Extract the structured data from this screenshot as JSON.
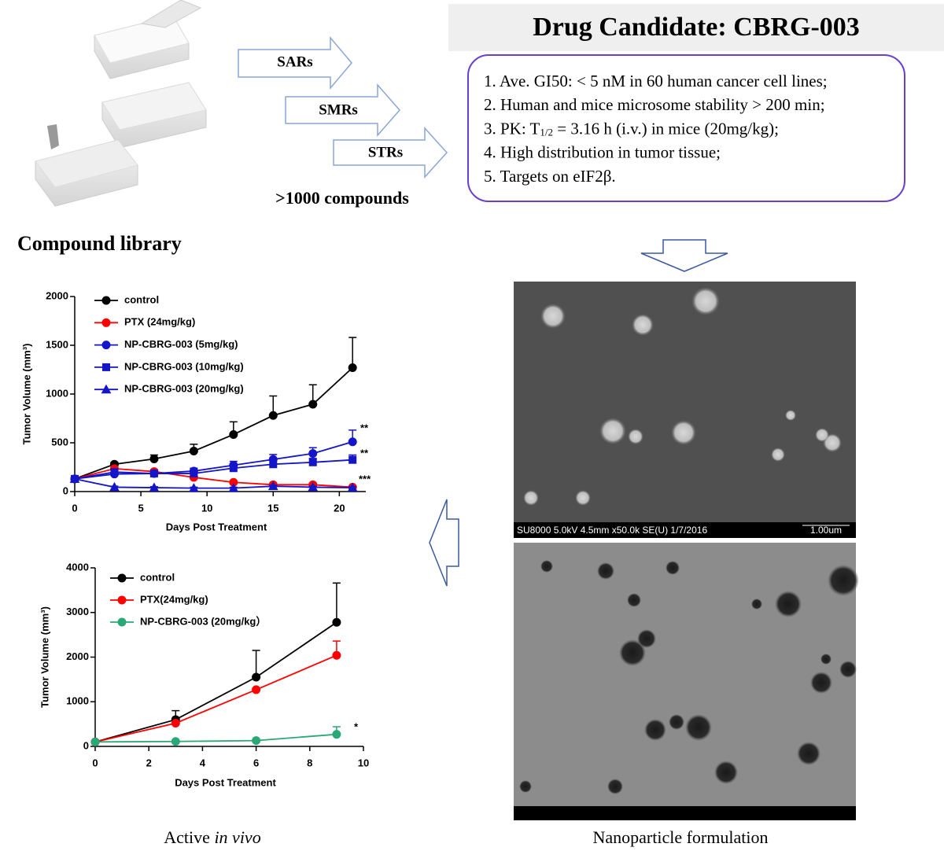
{
  "header": {
    "title": "Drug Candidate: CBRG-003"
  },
  "candidate_box": {
    "items": [
      "1. Ave. GI50: < 5 nM in 60 human cancer cell lines;",
      "2. Human and mice microsome stability > 200 min;",
      [
        "3. PK: T",
        "1/2",
        " = 3.16 h (i.v.) in mice (20mg/kg);"
      ],
      "4. High distribution in tumor tissue;",
      "5. Targets on eIF2β."
    ]
  },
  "arrows": [
    "SARs",
    "SMRs",
    "STRs"
  ],
  "library": {
    "count": ">1000 compounds",
    "caption": "Compound library"
  },
  "images": {
    "sem_caption": "SU8000 5.0kV 4.5mm x50.0k SE(U) 1/7/2016",
    "sem_scale": "1.00um"
  },
  "captions": {
    "invivo": [
      "Active ",
      "in vivo"
    ],
    "nano": "Nanoparticle formulation"
  },
  "chart_data": [
    {
      "type": "line",
      "x_label": "Days Post Treatment",
      "y_label": "Tumor Volume (mm³)",
      "x": [
        0,
        3,
        6,
        9,
        12,
        15,
        18,
        21
      ],
      "xlim": [
        0,
        22
      ],
      "xticks": [
        0,
        5,
        10,
        15,
        20
      ],
      "ylim": [
        0,
        2000
      ],
      "yticks": [
        0,
        500,
        1000,
        1500,
        2000
      ],
      "legend": "upper left",
      "series": [
        {
          "name": "control",
          "color": "#000000",
          "marker": "circle",
          "values": [
            130,
            280,
            335,
            415,
            585,
            780,
            895,
            1270
          ],
          "errors": [
            0,
            20,
            40,
            70,
            130,
            200,
            200,
            310
          ]
        },
        {
          "name": "PTX (24mg/kg)",
          "color": "#ff0000",
          "marker": "circle",
          "values": [
            130,
            235,
            205,
            145,
            95,
            70,
            70,
            45
          ],
          "errors": [
            0,
            20,
            20,
            15,
            15,
            10,
            15,
            10
          ]
        },
        {
          "name": "NP-CBRG-003 (5mg/kg)",
          "color": "#1414c8",
          "marker": "circle",
          "values": [
            130,
            180,
            185,
            210,
            270,
            330,
            390,
            510
          ],
          "errors": [
            0,
            20,
            20,
            30,
            40,
            50,
            60,
            120
          ]
        },
        {
          "name": "NP-CBRG-003 (10mg/kg)",
          "color": "#1414c8",
          "marker": "square",
          "values": [
            130,
            200,
            185,
            185,
            240,
            280,
            300,
            325
          ],
          "errors": [
            0,
            20,
            20,
            25,
            30,
            40,
            40,
            50
          ]
        },
        {
          "name": "NP-CBRG-003 (20mg/kg)",
          "color": "#1414c8",
          "marker": "triangle",
          "values": [
            130,
            45,
            40,
            35,
            35,
            55,
            45,
            40
          ],
          "errors": [
            0,
            10,
            10,
            10,
            10,
            10,
            10,
            10
          ]
        }
      ],
      "annotations": [
        "**",
        "**",
        "***"
      ]
    },
    {
      "type": "line",
      "x_label": "Days Post Treatment",
      "y_label": "Tumor Volume (mm³)",
      "x": [
        0,
        3,
        6,
        9
      ],
      "xlim": [
        0,
        10
      ],
      "xticks": [
        0,
        2,
        4,
        6,
        8,
        10
      ],
      "ylim": [
        0,
        4000
      ],
      "yticks": [
        0,
        1000,
        2000,
        3000,
        4000
      ],
      "legend": "upper left",
      "series": [
        {
          "name": "control",
          "color": "#000000",
          "marker": "circle",
          "values": [
            100,
            600,
            1550,
            2780
          ],
          "errors": [
            0,
            200,
            600,
            880
          ]
        },
        {
          "name": "PTX(24mg/kg)",
          "color": "#ff0000",
          "marker": "circle",
          "values": [
            100,
            520,
            1270,
            2040
          ],
          "errors": [
            0,
            0,
            0,
            320
          ]
        },
        {
          "name": "NP-CBRG-003 (20mg/kg）",
          "color": "#2aa876",
          "marker": "circle",
          "values": [
            100,
            110,
            130,
            270
          ],
          "errors": [
            0,
            0,
            0,
            170
          ]
        }
      ],
      "annotations": [
        "*"
      ]
    }
  ]
}
